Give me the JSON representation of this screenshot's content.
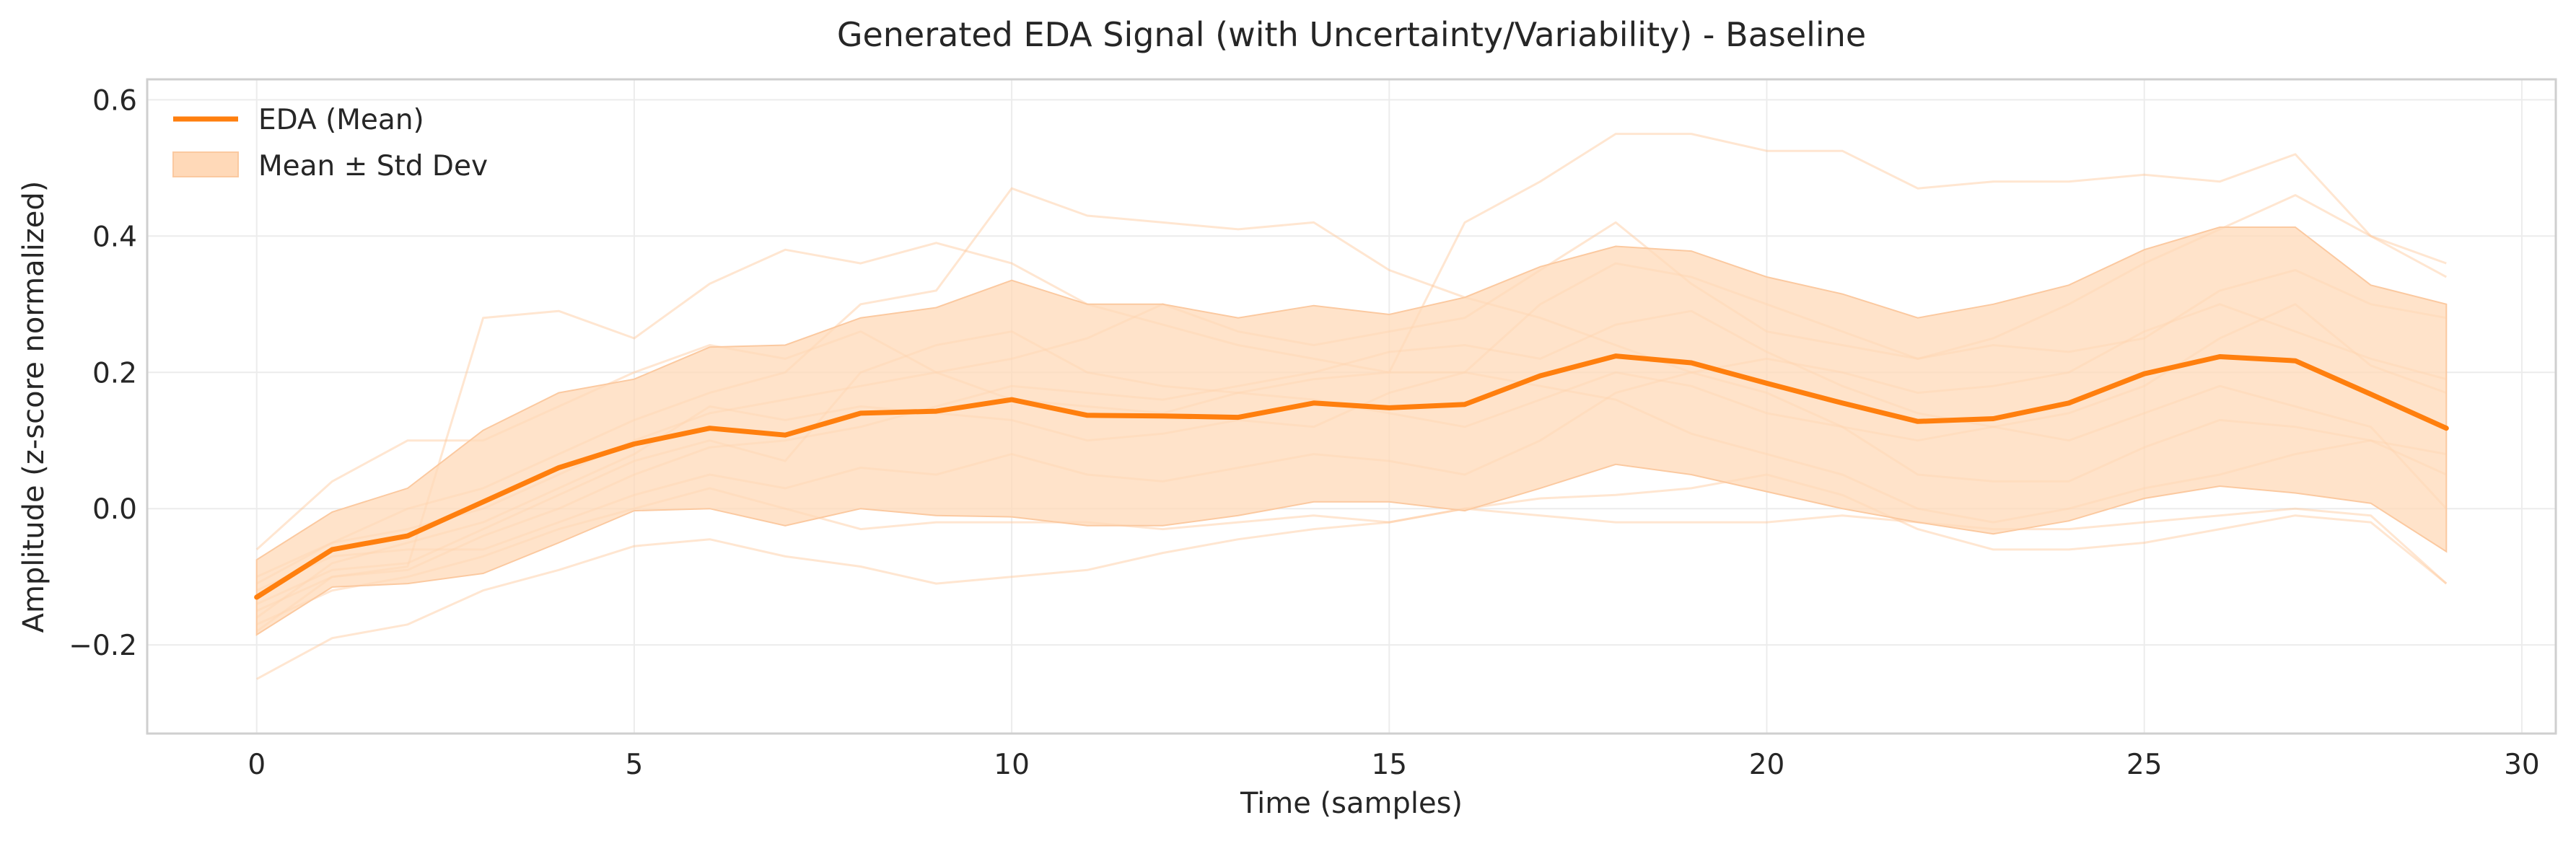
{
  "chart_data": {
    "type": "line",
    "title": "Generated EDA Signal (with Uncertainty/Variability) - Baseline",
    "xlabel": "Time (samples)",
    "ylabel": "Amplitude (z-score normalized)",
    "xlim": [
      -1.45,
      30.45
    ],
    "ylim": [
      -0.33,
      0.63
    ],
    "xticks": [
      0,
      5,
      10,
      15,
      20,
      25,
      30
    ],
    "xtick_labels": [
      "0",
      "5",
      "10",
      "15",
      "20",
      "25",
      "30"
    ],
    "yticks": [
      -0.2,
      0.0,
      0.2,
      0.4,
      0.6
    ],
    "ytick_labels": [
      "−0.2",
      "0.0",
      "0.2",
      "0.4",
      "0.6"
    ],
    "grid": true,
    "legend_position": "top-left",
    "colors": {
      "mean": "#ff7f0e",
      "band": "#ffd9b8",
      "band_edge": "#fbc9a0",
      "samples": "#ffc89a"
    },
    "x": [
      0,
      1,
      2,
      3,
      4,
      5,
      6,
      7,
      8,
      9,
      10,
      11,
      12,
      13,
      14,
      15,
      16,
      17,
      18,
      19,
      20,
      21,
      22,
      23,
      24,
      25,
      26,
      27,
      28,
      29
    ],
    "series": [
      {
        "name": "EDA (Mean)",
        "kind": "mean",
        "values": [
          -0.13,
          -0.06,
          -0.04,
          0.01,
          0.06,
          0.095,
          0.118,
          0.108,
          0.14,
          0.143,
          0.16,
          0.137,
          0.136,
          0.134,
          0.155,
          0.148,
          0.153,
          0.195,
          0.224,
          0.214,
          0.184,
          0.155,
          0.128,
          0.132,
          0.155,
          0.198,
          0.223,
          0.217,
          0.168,
          0.118
        ]
      },
      {
        "name": "Mean ± Std Dev",
        "kind": "band",
        "upper": [
          -0.075,
          -0.005,
          0.03,
          0.115,
          0.17,
          0.19,
          0.237,
          0.24,
          0.28,
          0.295,
          0.335,
          0.3,
          0.3,
          0.28,
          0.298,
          0.285,
          0.31,
          0.355,
          0.385,
          0.378,
          0.34,
          0.315,
          0.28,
          0.3,
          0.328,
          0.38,
          0.413,
          0.413,
          0.328,
          0.3
        ],
        "lower": [
          -0.185,
          -0.115,
          -0.11,
          -0.095,
          -0.05,
          -0.003,
          0.0,
          -0.025,
          0.0,
          -0.01,
          -0.012,
          -0.025,
          -0.025,
          -0.01,
          0.01,
          0.01,
          -0.003,
          0.03,
          0.065,
          0.05,
          0.025,
          0.0,
          -0.02,
          -0.037,
          -0.018,
          0.015,
          0.033,
          0.023,
          0.008,
          -0.063
        ]
      }
    ],
    "sample_series": [
      [
        -0.06,
        0.04,
        0.1,
        0.1,
        0.15,
        0.2,
        0.24,
        0.22,
        0.26,
        0.2,
        0.16,
        0.15,
        0.14,
        0.17,
        0.19,
        0.2,
        0.42,
        0.48,
        0.55,
        0.55,
        0.525,
        0.525,
        0.47,
        0.48,
        0.48,
        0.49,
        0.48,
        0.52,
        0.4,
        0.36
      ],
      [
        -0.25,
        -0.19,
        -0.17,
        -0.12,
        -0.09,
        -0.055,
        -0.045,
        -0.07,
        -0.085,
        -0.11,
        -0.1,
        -0.09,
        -0.065,
        -0.045,
        -0.03,
        -0.02,
        0.0,
        0.015,
        0.02,
        0.03,
        0.05,
        0.02,
        -0.03,
        -0.06,
        -0.06,
        -0.05,
        -0.03,
        -0.01,
        -0.02,
        -0.11
      ],
      [
        -0.18,
        -0.1,
        -0.085,
        0.28,
        0.29,
        0.25,
        0.33,
        0.38,
        0.36,
        0.39,
        0.36,
        0.3,
        0.27,
        0.24,
        0.22,
        0.2,
        0.2,
        0.18,
        0.16,
        0.11,
        0.08,
        0.05,
        0.0,
        -0.02,
        0.0,
        0.03,
        0.05,
        0.08,
        0.1,
        0.05
      ],
      [
        -0.1,
        -0.05,
        0.0,
        0.03,
        0.08,
        0.13,
        0.17,
        0.2,
        0.3,
        0.32,
        0.47,
        0.43,
        0.42,
        0.41,
        0.42,
        0.35,
        0.31,
        0.28,
        0.24,
        0.2,
        0.17,
        0.12,
        0.05,
        0.04,
        0.04,
        0.09,
        0.13,
        0.12,
        0.1,
        0.08
      ],
      [
        -0.16,
        -0.08,
        -0.05,
        -0.02,
        0.03,
        0.08,
        0.15,
        0.13,
        0.15,
        0.14,
        0.13,
        0.1,
        0.11,
        0.13,
        0.12,
        0.17,
        0.2,
        0.3,
        0.36,
        0.34,
        0.3,
        0.26,
        0.22,
        0.25,
        0.3,
        0.36,
        0.41,
        0.46,
        0.4,
        0.34
      ],
      [
        -0.12,
        -0.07,
        -0.06,
        -0.06,
        -0.02,
        0.02,
        0.05,
        0.03,
        0.06,
        0.05,
        0.08,
        0.05,
        0.04,
        0.06,
        0.08,
        0.07,
        0.05,
        0.1,
        0.17,
        0.2,
        0.22,
        0.2,
        0.17,
        0.18,
        0.2,
        0.26,
        0.3,
        0.26,
        0.22,
        0.19
      ],
      [
        -0.15,
        -0.1,
        -0.09,
        -0.04,
        0.0,
        0.05,
        0.09,
        0.1,
        0.12,
        0.15,
        0.18,
        0.17,
        0.16,
        0.18,
        0.2,
        0.23,
        0.24,
        0.22,
        0.27,
        0.29,
        0.23,
        0.18,
        0.14,
        0.12,
        0.14,
        0.18,
        0.25,
        0.3,
        0.21,
        0.17
      ],
      [
        -0.14,
        -0.09,
        -0.08,
        -0.03,
        0.02,
        0.07,
        0.1,
        0.07,
        0.2,
        0.24,
        0.26,
        0.2,
        0.18,
        0.17,
        0.16,
        0.14,
        0.12,
        0.16,
        0.2,
        0.18,
        0.14,
        0.12,
        0.1,
        0.12,
        0.1,
        0.14,
        0.18,
        0.15,
        0.12,
        0.0
      ],
      [
        -0.17,
        -0.12,
        -0.1,
        -0.07,
        -0.03,
        0.0,
        0.03,
        0.0,
        -0.03,
        -0.02,
        -0.02,
        -0.02,
        -0.03,
        -0.02,
        -0.01,
        -0.02,
        0.0,
        -0.01,
        -0.02,
        -0.02,
        -0.02,
        -0.01,
        -0.02,
        -0.03,
        -0.03,
        -0.02,
        -0.01,
        0.0,
        -0.01,
        -0.11
      ],
      [
        -0.11,
        -0.05,
        -0.03,
        0.0,
        0.05,
        0.1,
        0.14,
        0.16,
        0.18,
        0.2,
        0.22,
        0.25,
        0.3,
        0.26,
        0.24,
        0.26,
        0.28,
        0.35,
        0.42,
        0.33,
        0.26,
        0.24,
        0.22,
        0.24,
        0.23,
        0.25,
        0.32,
        0.35,
        0.3,
        0.28
      ]
    ]
  }
}
